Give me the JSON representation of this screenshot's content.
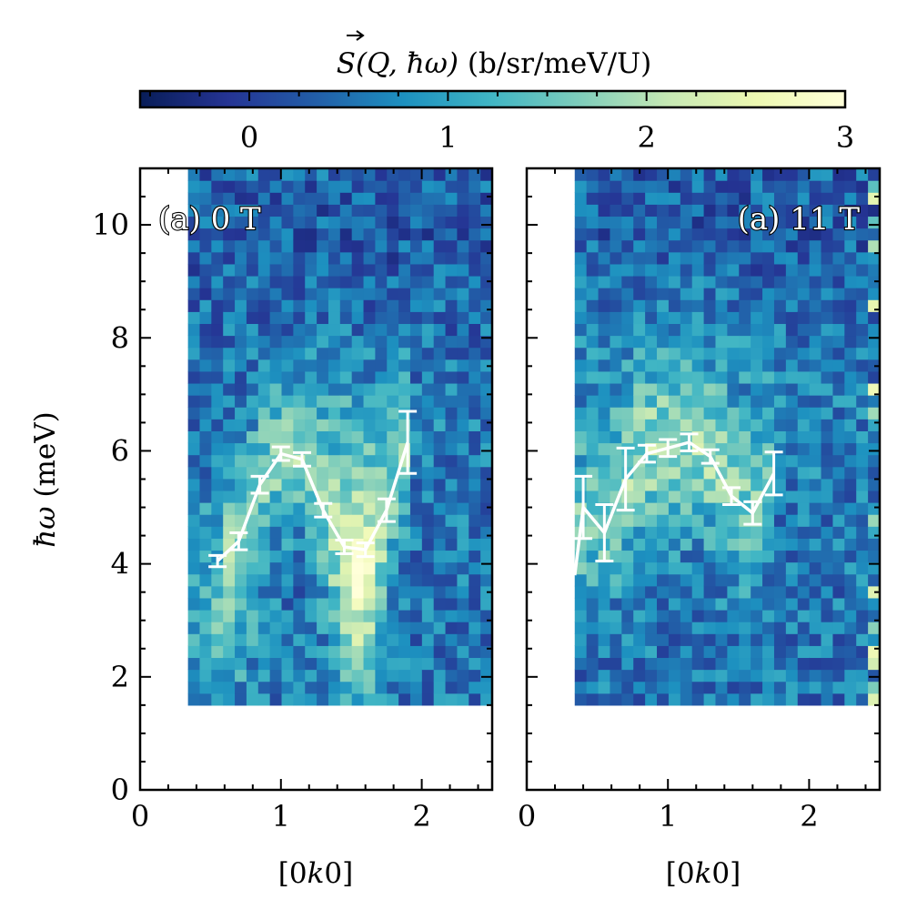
{
  "colors": {
    "colormap": [
      "#081d58",
      "#253494",
      "#225ea8",
      "#1d91c0",
      "#41b6c4",
      "#7fcdbb",
      "#c7e9b4",
      "#edf8b1",
      "#ffffd9"
    ],
    "curve": "#ffffff"
  },
  "colorbar": {
    "title": "S(Q, ħω) (b/sr/meV/U)",
    "title_parts": {
      "s": "S(",
      "q": "Q",
      "mid": ", ħω)",
      "units": " (b/sr/meV/U)"
    },
    "range": [
      -0.55,
      3.0
    ],
    "ticks": [
      "0",
      "1",
      "2",
      "3"
    ]
  },
  "chart_data": [
    {
      "type": "heatmap",
      "panel_label": "(a) 0 T",
      "xlabel": "[0k0]",
      "xlabel_parts": {
        "pre": "[0",
        "var": "k",
        "post": "0]"
      },
      "ylabel": "ħω (meV)",
      "ylabel_parts": {
        "sym": "ħω",
        "units": " (meV)"
      },
      "xlim": [
        0,
        2.5
      ],
      "ylim": [
        0,
        11
      ],
      "xticks": [
        "0",
        "1",
        "2"
      ],
      "yticks": [
        "0",
        "2",
        "4",
        "6",
        "8",
        "10"
      ],
      "map_extent": {
        "x": [
          0.34,
          2.5
        ],
        "y": [
          1.5,
          11
        ]
      },
      "dispersion": {
        "k": [
          0.55,
          0.7,
          0.85,
          1.0,
          1.15,
          1.3,
          1.45,
          1.6,
          1.75,
          1.9
        ],
        "energy": [
          4.05,
          4.4,
          5.4,
          5.95,
          5.85,
          4.95,
          4.3,
          4.25,
          4.95,
          6.15
        ],
        "error": [
          0.1,
          0.15,
          0.15,
          0.12,
          0.12,
          0.12,
          0.12,
          0.12,
          0.2,
          0.55
        ]
      }
    },
    {
      "type": "heatmap",
      "panel_label": "(a) 11 T",
      "xlabel": "[0k0]",
      "xlabel_parts": {
        "pre": "[0",
        "var": "k",
        "post": "0]"
      },
      "xlim": [
        0,
        2.5
      ],
      "ylim": [
        0,
        11
      ],
      "xticks": [
        "0",
        "1",
        "2"
      ],
      "map_extent": {
        "x": [
          0.34,
          2.5
        ],
        "y": [
          1.5,
          11
        ]
      },
      "dispersion": {
        "k": [
          0.34,
          0.4,
          0.55,
          0.7,
          0.85,
          1.0,
          1.15,
          1.3,
          1.45,
          1.6,
          1.75
        ],
        "energy": [
          3.8,
          5.0,
          4.55,
          5.5,
          5.95,
          6.05,
          6.15,
          5.9,
          5.2,
          4.9,
          5.6
        ],
        "error": [
          0.0,
          0.55,
          0.5,
          0.55,
          0.15,
          0.15,
          0.15,
          0.12,
          0.15,
          0.2,
          0.38
        ]
      }
    }
  ]
}
